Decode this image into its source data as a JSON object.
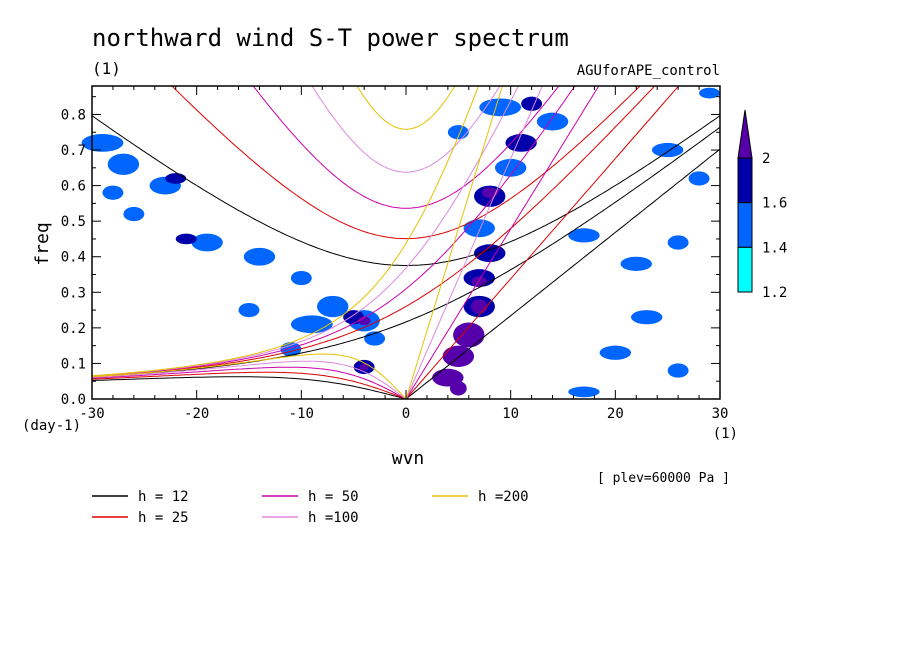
{
  "chart_data": {
    "type": "heatmap",
    "title": "northward wind S-T power spectrum",
    "subtitle_units": "(1)",
    "experiment": "AGUforAPE_control",
    "xlabel": "wvn",
    "x_units": "(1)",
    "ylabel": "freq",
    "y_units": "(day-1)",
    "plev_note": "[ plev=60000 Pa ]",
    "xlim": [
      -30,
      30
    ],
    "ylim": [
      0,
      0.88
    ],
    "x_ticks": [
      "-30",
      "-20",
      "-10",
      "0",
      "10",
      "20",
      "30"
    ],
    "x_tick_values": [
      -30,
      -20,
      -10,
      0,
      10,
      20,
      30
    ],
    "y_ticks": [
      "0.0",
      "0.1",
      "0.2",
      "0.3",
      "0.4",
      "0.5",
      "0.6",
      "0.7",
      "0.8"
    ],
    "y_tick_values": [
      0,
      0.1,
      0.2,
      0.3,
      0.4,
      0.5,
      0.6,
      0.7,
      0.8
    ],
    "colorbar": {
      "levels": [
        1.2,
        1.4,
        1.6,
        2
      ],
      "labels": [
        "1.2",
        "1.4",
        "1.6",
        "2"
      ],
      "colors": [
        "#00ffff",
        "#0066ff",
        "#0000aa",
        "#5500aa"
      ]
    },
    "series": [
      {
        "name": "h = 12",
        "h": 12,
        "color": "#000000"
      },
      {
        "name": "h = 25",
        "h": 25,
        "color": "#dd0000"
      },
      {
        "name": "h = 50",
        "h": 50,
        "color": "#cc00aa"
      },
      {
        "name": "h =100",
        "h": 100,
        "color": "#dd88dd"
      },
      {
        "name": "h =200",
        "h": 200,
        "color": "#e6c200"
      }
    ],
    "regions": [
      {
        "x": -27,
        "y": 0.66,
        "w": 3,
        "h": 0.06,
        "level": 1
      },
      {
        "x": -29,
        "y": 0.72,
        "w": 4,
        "h": 0.05,
        "level": 1
      },
      {
        "x": -23,
        "y": 0.6,
        "w": 3,
        "h": 0.05,
        "level": 1
      },
      {
        "x": -22,
        "y": 0.62,
        "w": 2,
        "h": 0.03,
        "level": 2
      },
      {
        "x": -28,
        "y": 0.58,
        "w": 2,
        "h": 0.04,
        "level": 1
      },
      {
        "x": -26,
        "y": 0.52,
        "w": 2,
        "h": 0.04,
        "level": 1
      },
      {
        "x": -19,
        "y": 0.44,
        "w": 3,
        "h": 0.05,
        "level": 1
      },
      {
        "x": -21,
        "y": 0.45,
        "w": 2,
        "h": 0.03,
        "level": 2
      },
      {
        "x": -14,
        "y": 0.4,
        "w": 3,
        "h": 0.05,
        "level": 1
      },
      {
        "x": -10,
        "y": 0.34,
        "w": 2,
        "h": 0.04,
        "level": 1
      },
      {
        "x": -7,
        "y": 0.26,
        "w": 3,
        "h": 0.06,
        "level": 1
      },
      {
        "x": -4,
        "y": 0.22,
        "w": 3,
        "h": 0.06,
        "level": 1
      },
      {
        "x": -5,
        "y": 0.23,
        "w": 2,
        "h": 0.04,
        "level": 2
      },
      {
        "x": -4,
        "y": 0.22,
        "w": 1.2,
        "h": 0.025,
        "level": 3
      },
      {
        "x": -9,
        "y": 0.21,
        "w": 4,
        "h": 0.05,
        "level": 1
      },
      {
        "x": -3,
        "y": 0.17,
        "w": 2,
        "h": 0.04,
        "level": 1
      },
      {
        "x": -4,
        "y": 0.09,
        "w": 2,
        "h": 0.04,
        "level": 2
      },
      {
        "x": -4,
        "y": 0.09,
        "w": 0.9,
        "h": 0.02,
        "level": 3
      },
      {
        "x": -11,
        "y": 0.14,
        "w": 2,
        "h": 0.04,
        "level": 1
      },
      {
        "x": -15,
        "y": 0.25,
        "w": 2,
        "h": 0.04,
        "level": 1
      },
      {
        "x": 9,
        "y": 0.82,
        "w": 4,
        "h": 0.05,
        "level": 1
      },
      {
        "x": 12,
        "y": 0.83,
        "w": 2,
        "h": 0.04,
        "level": 2
      },
      {
        "x": 11,
        "y": 0.72,
        "w": 3,
        "h": 0.05,
        "level": 2
      },
      {
        "x": 10,
        "y": 0.65,
        "w": 3,
        "h": 0.05,
        "level": 1
      },
      {
        "x": 8,
        "y": 0.57,
        "w": 3,
        "h": 0.06,
        "level": 2
      },
      {
        "x": 8,
        "y": 0.58,
        "w": 1.5,
        "h": 0.03,
        "level": 3
      },
      {
        "x": 7,
        "y": 0.48,
        "w": 3,
        "h": 0.05,
        "level": 1
      },
      {
        "x": 8,
        "y": 0.41,
        "w": 3,
        "h": 0.05,
        "level": 2
      },
      {
        "x": 7,
        "y": 0.34,
        "w": 3,
        "h": 0.05,
        "level": 2
      },
      {
        "x": 7,
        "y": 0.33,
        "w": 1.5,
        "h": 0.03,
        "level": 3
      },
      {
        "x": 7,
        "y": 0.26,
        "w": 3,
        "h": 0.06,
        "level": 2
      },
      {
        "x": 7,
        "y": 0.26,
        "w": 1.6,
        "h": 0.04,
        "level": 3
      },
      {
        "x": 6,
        "y": 0.18,
        "w": 3,
        "h": 0.07,
        "level": 3
      },
      {
        "x": 5,
        "y": 0.12,
        "w": 3,
        "h": 0.06,
        "level": 3
      },
      {
        "x": 4,
        "y": 0.06,
        "w": 3,
        "h": 0.05,
        "level": 3
      },
      {
        "x": 5,
        "y": 0.03,
        "w": 1.6,
        "h": 0.04,
        "level": 3
      },
      {
        "x": 14,
        "y": 0.78,
        "w": 3,
        "h": 0.05,
        "level": 1
      },
      {
        "x": 17,
        "y": 0.46,
        "w": 3,
        "h": 0.04,
        "level": 1
      },
      {
        "x": 22,
        "y": 0.38,
        "w": 3,
        "h": 0.04,
        "level": 1
      },
      {
        "x": 26,
        "y": 0.44,
        "w": 2,
        "h": 0.04,
        "level": 1
      },
      {
        "x": 23,
        "y": 0.23,
        "w": 3,
        "h": 0.04,
        "level": 1
      },
      {
        "x": 20,
        "y": 0.13,
        "w": 3,
        "h": 0.04,
        "level": 1
      },
      {
        "x": 26,
        "y": 0.08,
        "w": 2,
        "h": 0.04,
        "level": 1
      },
      {
        "x": 28,
        "y": 0.62,
        "w": 2,
        "h": 0.04,
        "level": 1
      },
      {
        "x": 25,
        "y": 0.7,
        "w": 3,
        "h": 0.04,
        "level": 1
      },
      {
        "x": 29,
        "y": 0.86,
        "w": 2,
        "h": 0.03,
        "level": 1
      },
      {
        "x": 5,
        "y": 0.75,
        "w": 2,
        "h": 0.04,
        "level": 1
      },
      {
        "x": 17,
        "y": 0.02,
        "w": 3,
        "h": 0.03,
        "level": 1
      }
    ]
  }
}
